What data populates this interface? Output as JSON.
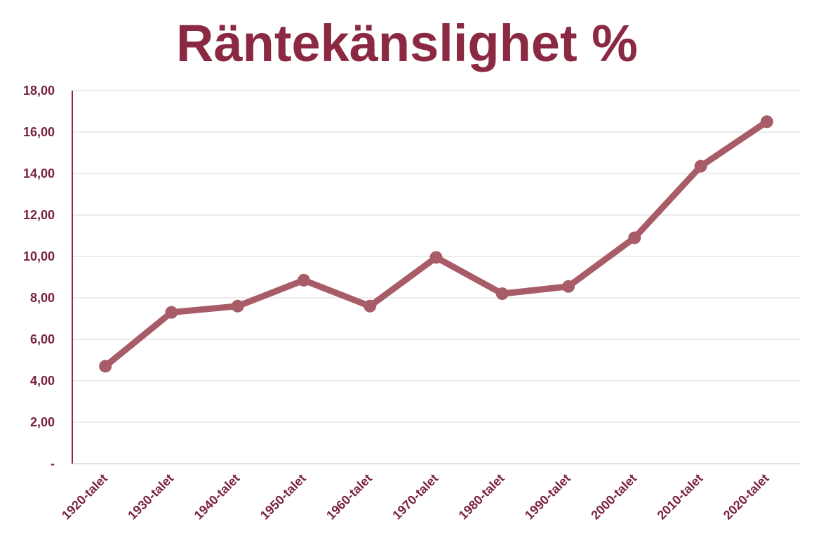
{
  "chart_data": {
    "type": "line",
    "title": "Räntekänslighet %",
    "xlabel": "",
    "ylabel": "",
    "categories": [
      "1920-talet",
      "1930-talet",
      "1940-talet",
      "1950-talet",
      "1960-talet",
      "1970-talet",
      "1980-talet",
      "1990-talet",
      "2000-talet",
      "2010-talet",
      "2020-talet"
    ],
    "series": [
      {
        "values": [
          4.7,
          7.3,
          7.6,
          8.85,
          7.6,
          9.95,
          8.2,
          8.55,
          10.9,
          14.35,
          16.5
        ]
      }
    ],
    "ylim": [
      0,
      18
    ],
    "yticks": [
      {
        "value": 0,
        "label": "-"
      },
      {
        "value": 2,
        "label": "2,00"
      },
      {
        "value": 4,
        "label": "4,00"
      },
      {
        "value": 6,
        "label": "6,00"
      },
      {
        "value": 8,
        "label": "8,00"
      },
      {
        "value": 10,
        "label": "10,00"
      },
      {
        "value": 12,
        "label": "12,00"
      },
      {
        "value": 14,
        "label": "14,00"
      },
      {
        "value": 16,
        "label": "16,00"
      },
      {
        "value": 18,
        "label": "18,00"
      }
    ],
    "grid": true,
    "legend": "none"
  },
  "colors": {
    "title": "#8b2942",
    "axis_text": "#7a2240",
    "axis_line": "#8b2942",
    "line": "#a85c68",
    "marker": "#a85c68",
    "grid": "#d9d9d9"
  }
}
